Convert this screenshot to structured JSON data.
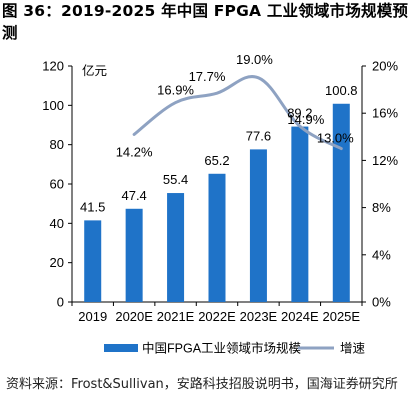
{
  "figure": {
    "title": "图 36：2019-2025 年中国 FPGA 工业领域市场规模预测",
    "source": "资料来源：Frost&Sullivan，安路科技招股说明书，国海证券研究所"
  },
  "chart_data": {
    "type": "bar",
    "categories": [
      "2019",
      "2020E",
      "2021E",
      "2022E",
      "2023E",
      "2024E",
      "2025E"
    ],
    "series": [
      {
        "name": "中国FPGA工业领域市场规模",
        "type": "bar",
        "axis": "left",
        "values": [
          41.5,
          47.4,
          55.4,
          65.2,
          77.6,
          89.2,
          100.8
        ],
        "value_labels": [
          "41.5",
          "47.4",
          "55.4",
          "65.2",
          "77.6",
          "89.2",
          "100.8"
        ]
      },
      {
        "name": "增速",
        "type": "line",
        "axis": "right",
        "values": [
          null,
          14.2,
          16.9,
          17.7,
          19.0,
          14.9,
          13.0
        ],
        "value_labels": [
          "",
          "14.2%",
          "16.9%",
          "17.7%",
          "19.0%",
          "14.9%",
          "13.0%"
        ]
      }
    ],
    "left_axis": {
      "unit": "亿元",
      "ylim": [
        0,
        120
      ],
      "ticks": [
        0,
        20,
        40,
        60,
        80,
        100,
        120
      ],
      "tick_labels": [
        "0",
        "20",
        "40",
        "60",
        "80",
        "100",
        "120"
      ]
    },
    "right_axis": {
      "ylim": [
        0,
        20
      ],
      "ticks": [
        0,
        4,
        8,
        12,
        16,
        20
      ],
      "tick_labels": [
        "0%",
        "4%",
        "8%",
        "12%",
        "16%",
        "20%"
      ]
    },
    "colors": {
      "bar": "#1f73c8",
      "line": "#8ea2c2"
    },
    "grid": false,
    "legend_position": "bottom"
  }
}
